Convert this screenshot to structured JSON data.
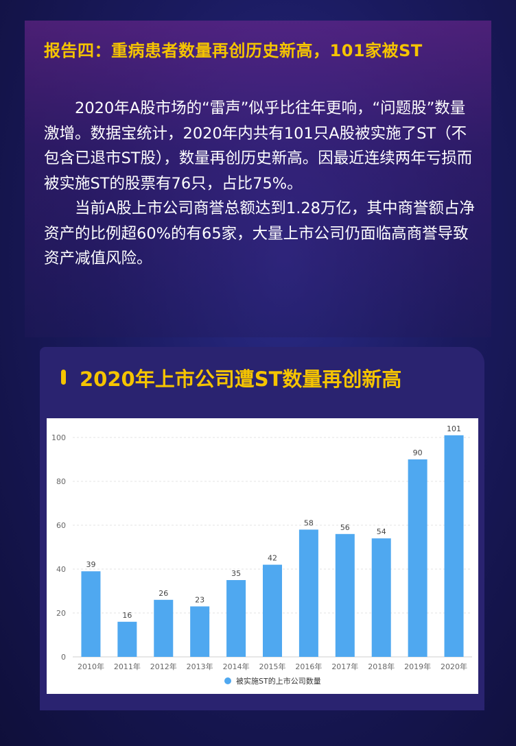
{
  "header": {
    "title": "报告四：重病患者数量再创历史新高，101家被ST"
  },
  "body": {
    "paragraphs": [
      "2020年A股市场的“雷声”似乎比往年更响，“问题股”数量激增。数据宝统计，2020年内共有101只A股被实施了ST（不包含已退市ST股），数量再创历史新高。因最近连续两年亏损而被实施ST的股票有76只，占比75%。",
      "当前A股上市公司商誉总额达到1.28万亿，其中商誉额占净资产的比例超60%的有65家，大量上市公司仍面临高商誉导致资产减值风险。"
    ]
  },
  "chart_section": {
    "title": "2020年上市公司遭ST数量再创新高"
  },
  "chart_data": {
    "type": "bar",
    "categories": [
      "2010年",
      "2011年",
      "2012年",
      "2013年",
      "2014年",
      "2015年",
      "2016年",
      "2017年",
      "2018年",
      "2019年",
      "2020年"
    ],
    "series": [
      {
        "name": "被实施ST的上市公司数量",
        "values": [
          39,
          16,
          26,
          23,
          35,
          42,
          58,
          56,
          54,
          90,
          101
        ]
      }
    ],
    "yticks": [
      0,
      20,
      40,
      60,
      80,
      100
    ],
    "ylim": [
      0,
      100
    ],
    "grid": true,
    "legend_position": "bottom-center",
    "colors": {
      "bar": "#4fa8f0",
      "grid": "#e3e3e3",
      "axis_text": "#666666",
      "title": "#f5c400"
    }
  }
}
